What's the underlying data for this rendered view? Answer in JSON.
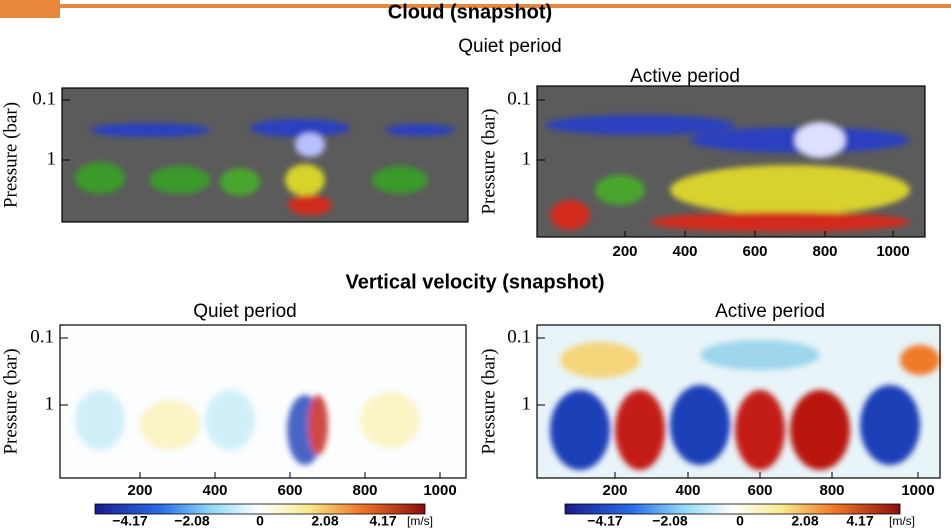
{
  "sections": [
    {
      "title": "Cloud (snapshot)",
      "panels": [
        {
          "title": "Quiet period",
          "y_label": "Pressure (bar)",
          "y_ticks": [
            "0.1",
            "1"
          ],
          "x_ticks": []
        },
        {
          "title": "Active period",
          "y_label": "Pressure (bar)",
          "y_ticks": [
            "0.1",
            "1"
          ],
          "x_ticks": [
            "200",
            "400",
            "600",
            "800",
            "1000"
          ]
        }
      ]
    },
    {
      "title": "Vertical velocity (snapshot)",
      "panels": [
        {
          "title": "Quiet period",
          "y_label": "Pressure (bar)",
          "y_ticks": [
            "0.1",
            "1"
          ],
          "x_ticks": [
            "200",
            "400",
            "600",
            "800",
            "1000"
          ],
          "colorbar": {
            "ticks": [
              "−4.17",
              "−2.08",
              "0",
              "2.08",
              "4.17"
            ],
            "unit": "[m/s]"
          }
        },
        {
          "title": "Active period",
          "y_label": "Pressure (bar)",
          "y_ticks": [
            "0.1",
            "1"
          ],
          "x_ticks": [
            "200",
            "400",
            "600",
            "800",
            "1000"
          ],
          "colorbar": {
            "ticks": [
              "−4.17",
              "−2.08",
              "0",
              "2.08",
              "4.17"
            ],
            "unit": "[m/s]"
          }
        }
      ]
    }
  ]
}
